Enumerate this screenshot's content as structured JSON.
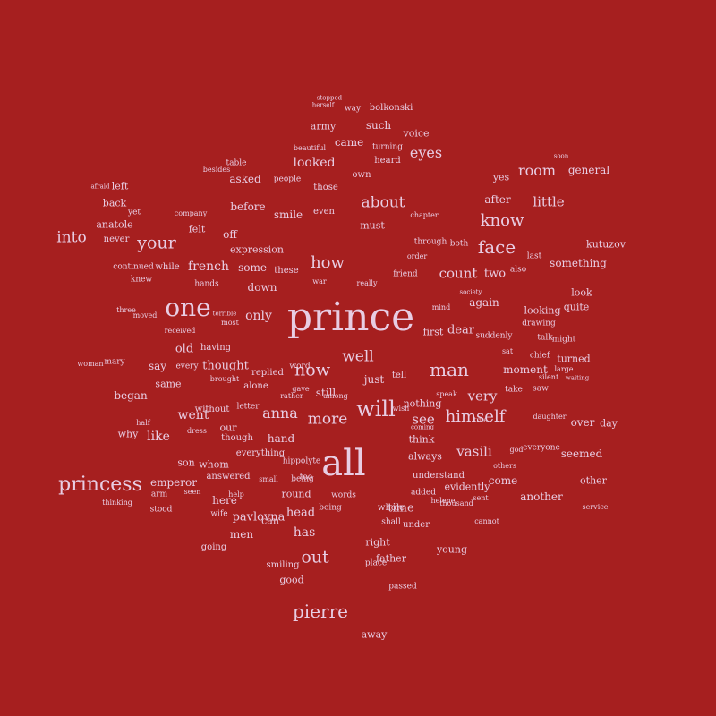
{
  "colors": {
    "background": "#a61f1f",
    "text": "#e8cde3"
  },
  "words": [
    "prince",
    "all",
    "one",
    "princess",
    "will",
    "pierre",
    "now",
    "man",
    "face",
    "your",
    "know",
    "how",
    "himself",
    "out",
    "well",
    "about",
    "eyes",
    "more",
    "room",
    "into",
    "little",
    "count",
    "anna",
    "very",
    "vasili",
    "see",
    "looked",
    "french",
    "only",
    "like",
    "went",
    "has",
    "thought",
    "head",
    "time",
    "two",
    "after",
    "just",
    "again",
    "come",
    "came",
    "such",
    "army",
    "asked",
    "before",
    "smile",
    "voice",
    "emperor",
    "dear",
    "here",
    "general",
    "kutuzov",
    "something",
    "look",
    "looking",
    "quite",
    "turned",
    "moment",
    "nothing",
    "still",
    "seemed",
    "over",
    "day",
    "other",
    "another",
    "evidently",
    "think",
    "pavlovna",
    "always",
    "round",
    "young",
    "father",
    "right",
    "good",
    "men",
    "can",
    "away",
    "began",
    "old",
    "say",
    "same",
    "son",
    "whom",
    "why",
    "hand",
    "our",
    "first",
    "way",
    "bolkonski",
    "heard",
    "yes",
    "left",
    "back",
    "yet",
    "anatole",
    "never",
    "knew",
    "while",
    "some",
    "these",
    "down",
    "off",
    "felt",
    "must",
    "even",
    "those",
    "company",
    "expression",
    "people",
    "whole",
    "under",
    "shall",
    "being",
    "added",
    "understand",
    "words",
    "tell",
    "having",
    "without",
    "replied",
    "though",
    "everything",
    "answered",
    "stood",
    "seen",
    "wife",
    "going",
    "smiling",
    "place",
    "passed",
    "also",
    "last",
    "chief",
    "drawing",
    "talk",
    "suddenly",
    "might",
    "saw",
    "take",
    "everyone",
    "daughter",
    "own",
    "turning",
    "table",
    "really",
    "friend",
    "order",
    "through",
    "chapter",
    "both",
    "war",
    "society",
    "received",
    "moved",
    "mary",
    "stopped",
    "herself",
    "beautiful",
    "besides",
    "afraid",
    "mind",
    "small",
    "soon",
    "others",
    "true",
    "god",
    "wish",
    "help",
    "cannot",
    "speak",
    "coming",
    "sent",
    "arm",
    "three",
    "thinking",
    "woman",
    "among",
    "hippolyte",
    "being",
    "too",
    "alone",
    "brought",
    "every",
    "most",
    "terrible",
    "hands",
    "continued",
    "sat",
    "large",
    "silent",
    "waiting",
    "dress",
    "letter",
    "half",
    "word",
    "gave",
    "rather",
    "thousand",
    "helene",
    "service"
  ]
}
